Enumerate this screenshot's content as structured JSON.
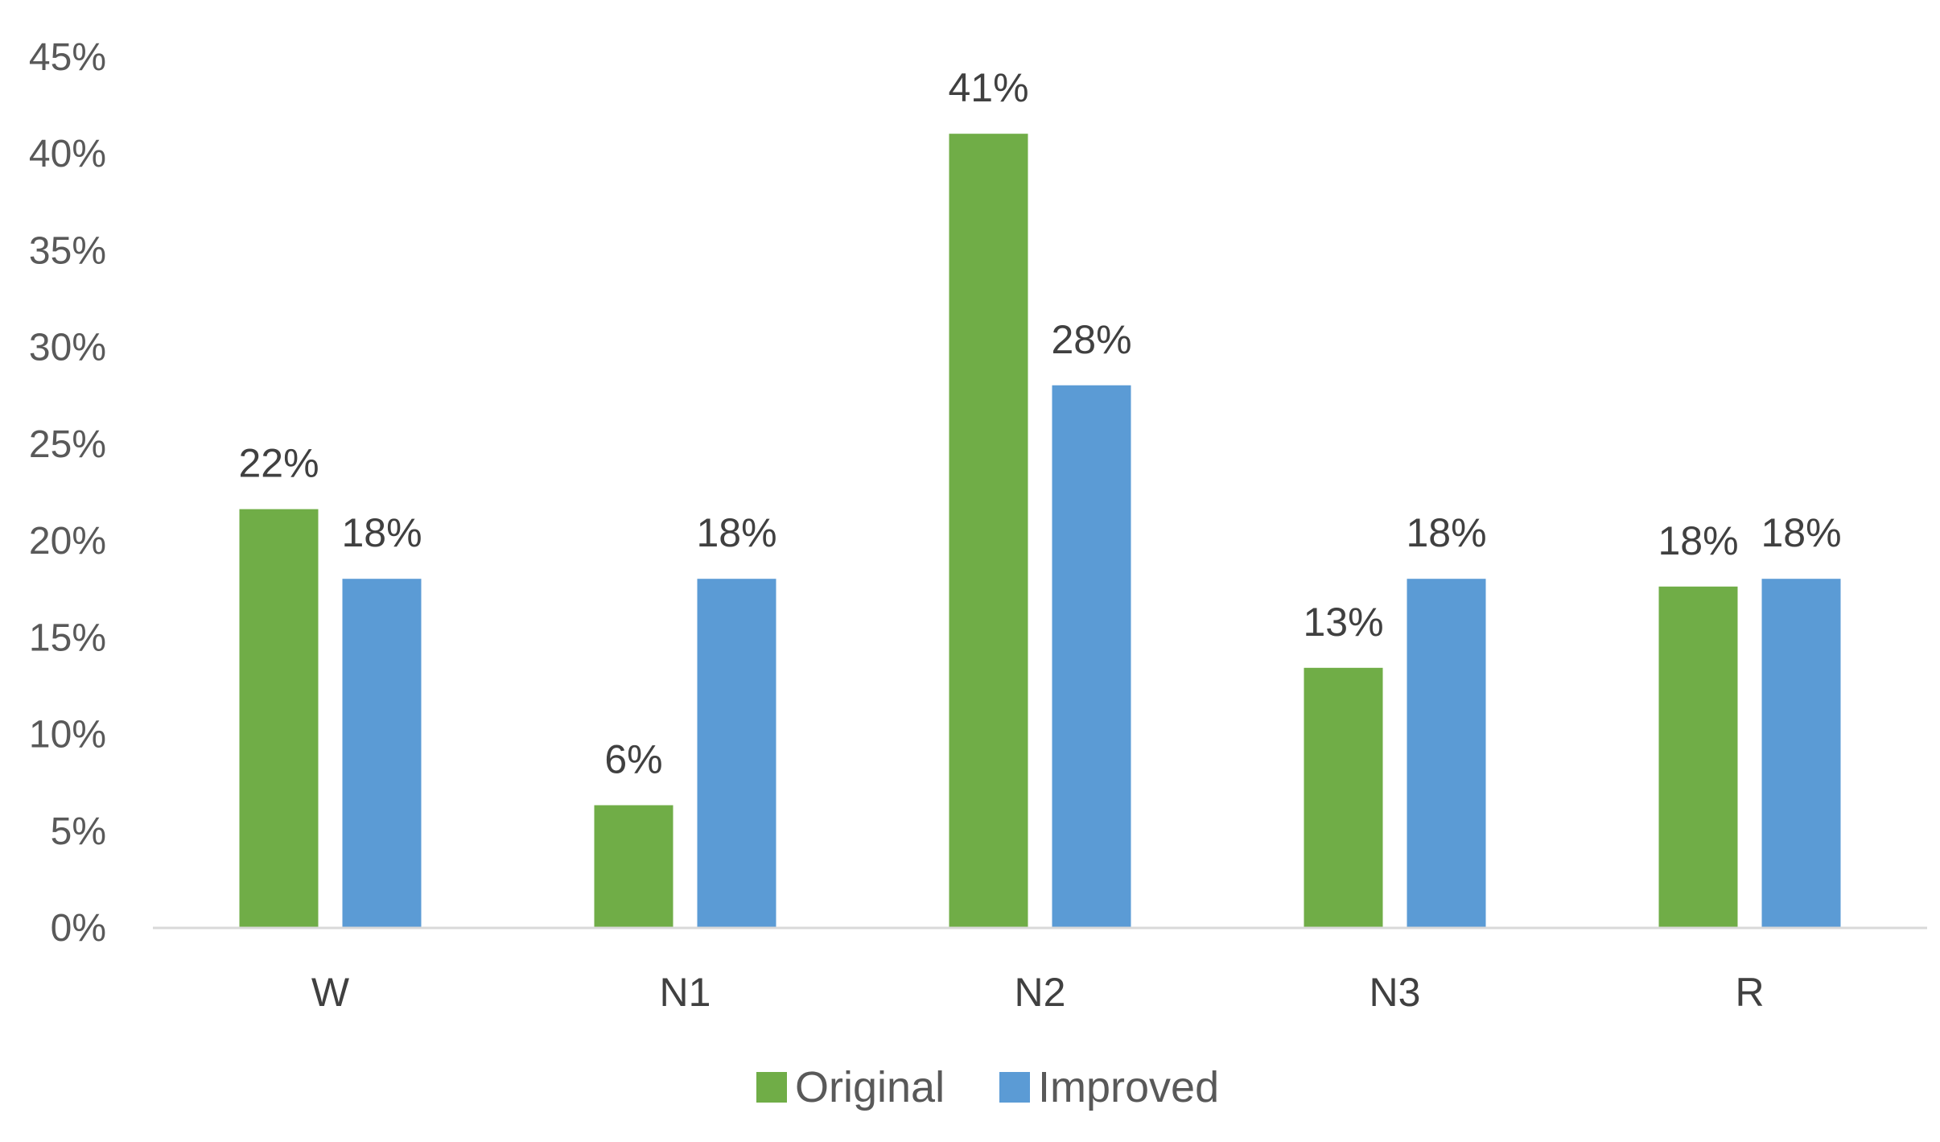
{
  "chart_data": {
    "type": "bar",
    "title": "",
    "xlabel": "",
    "ylabel": "",
    "categories": [
      "W",
      "N1",
      "N2",
      "N3",
      "R"
    ],
    "series": [
      {
        "name": "Original",
        "color": "#70AD47",
        "values": [
          21.6,
          6.3,
          41.0,
          13.4,
          17.6
        ],
        "labels": [
          "22%",
          "6%",
          "41%",
          "13%",
          "18%"
        ]
      },
      {
        "name": "Improved",
        "color": "#5B9BD5",
        "values": [
          18.0,
          18.0,
          28.0,
          18.0,
          18.0
        ],
        "labels": [
          "18%",
          "18%",
          "28%",
          "18%",
          "18%"
        ]
      }
    ],
    "ylim": [
      0,
      45
    ],
    "yticks": [
      0,
      5,
      10,
      15,
      20,
      25,
      30,
      35,
      40,
      45
    ],
    "ytick_labels": [
      "0%",
      "5%",
      "10%",
      "15%",
      "20%",
      "25%",
      "30%",
      "35%",
      "40%",
      "45%"
    ],
    "grid": false,
    "legend_position": "bottom"
  }
}
